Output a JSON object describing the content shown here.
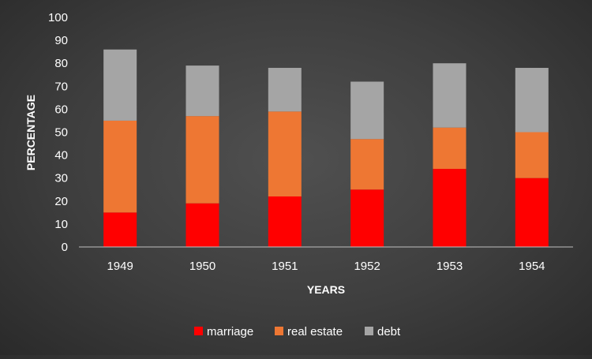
{
  "chart_data": {
    "type": "bar",
    "stacked": true,
    "categories": [
      "1949",
      "1950",
      "1951",
      "1952",
      "1953",
      "1954"
    ],
    "series": [
      {
        "name": "marriage",
        "color": "#ff0000",
        "values": [
          15,
          19,
          22,
          25,
          34,
          30
        ]
      },
      {
        "name": "real estate",
        "color": "#ee7733",
        "values": [
          40,
          38,
          37,
          22,
          18,
          20
        ]
      },
      {
        "name": "debt",
        "color": "#a5a5a5",
        "values": [
          31,
          22,
          19,
          25,
          28,
          28
        ]
      }
    ],
    "title": "",
    "xlabel": "YEARS",
    "ylabel": "PERCENTAGE",
    "ylim": [
      0,
      100
    ],
    "yticks": [
      "0",
      "10",
      "20",
      "30",
      "40",
      "50",
      "60",
      "70",
      "80",
      "90",
      "100"
    ],
    "grid": false,
    "legend_position": "bottom"
  }
}
